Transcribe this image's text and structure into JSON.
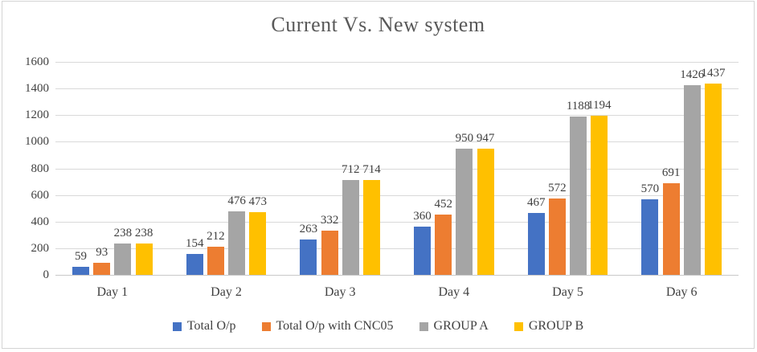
{
  "chart_data": {
    "type": "bar",
    "title": "Current Vs. New system",
    "xlabel": "",
    "ylabel": "",
    "categories": [
      "Day 1",
      "Day 2",
      "Day 3",
      "Day 4",
      "Day 5",
      "Day 6"
    ],
    "series": [
      {
        "name": "Total O/p",
        "color": "#4472C4",
        "values": [
          59,
          154,
          263,
          360,
          467,
          570
        ]
      },
      {
        "name": "Total O/p with CNC05",
        "color": "#ED7D31",
        "values": [
          93,
          212,
          332,
          452,
          572,
          691
        ]
      },
      {
        "name": "GROUP A",
        "color": "#A5A5A5",
        "values": [
          238,
          476,
          712,
          950,
          1188,
          1426
        ]
      },
      {
        "name": "GROUP B",
        "color": "#FFC000",
        "values": [
          238,
          473,
          714,
          947,
          1194,
          1437
        ]
      }
    ],
    "ylim": [
      0,
      1600
    ],
    "ytick_step": 200,
    "grid": true,
    "data_labels": true,
    "legend_position": "bottom",
    "style": {
      "gridline_color": "#D9D9D9",
      "axis_text_color": "#404040",
      "title_color": "#595959",
      "background": "#FFFFFF",
      "frame_border_color": "#D4D4D4"
    }
  }
}
